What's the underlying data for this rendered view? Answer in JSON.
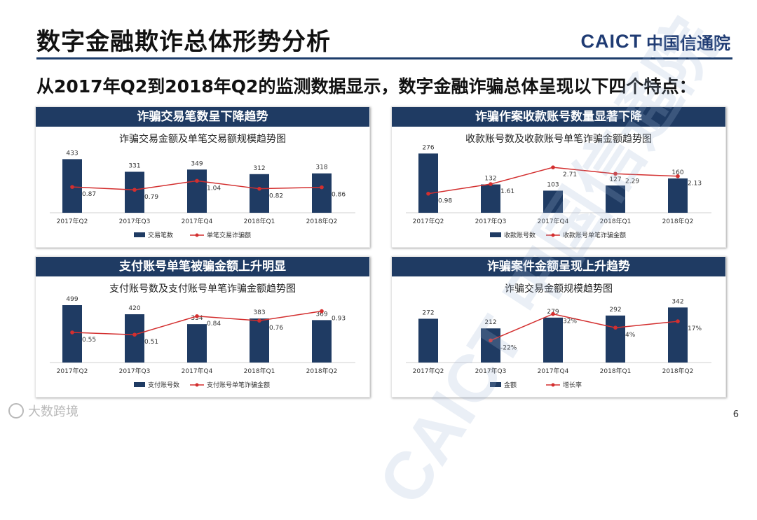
{
  "slide": {
    "title": "数字金融欺诈总体形势分析",
    "subtitle": "从2017年Q2到2018年Q2的监测数据显示，数字金融诈骗总体呈现以下四个特点：",
    "logo_en": "CAICT",
    "logo_cn": "中国信通院",
    "page_number": "6",
    "watermark_bottom": "大数跨境",
    "watermark_diagonal": "CAICT 中国信通院"
  },
  "colors": {
    "bar": "#1f3b63",
    "line": "#d32f2f",
    "header": "#1f3b63"
  },
  "panels": [
    {
      "header": "诈骗交易笔数呈下降趋势",
      "chart_title": "诈骗交易金额及单笔交易额规模趋势图"
    },
    {
      "header": "诈骗作案收款账号数量显著下降",
      "chart_title": "收款账号数及收款账号单笔诈骗金额趋势图"
    },
    {
      "header": "支付账号单笔被骗金额上升明显",
      "chart_title": "支付账号数及支付账号单笔诈骗金额趋势图"
    },
    {
      "header": "诈骗案件金额呈现上升趋势",
      "chart_title": "诈骗交易金额规模趋势图"
    }
  ],
  "chart_data": [
    {
      "type": "bar",
      "categories": [
        "2017年Q2",
        "2017年Q3",
        "2017年Q4",
        "2018年Q1",
        "2018年Q2"
      ],
      "series": [
        {
          "name": "交易笔数",
          "kind": "bar",
          "values": [
            433,
            331,
            349,
            312,
            318
          ],
          "labels": [
            "433",
            "331",
            "349",
            "312",
            "318"
          ]
        },
        {
          "name": "单笔交易诈骗额",
          "kind": "line",
          "values": [
            0.87,
            0.79,
            1.04,
            0.82,
            0.86
          ],
          "labels": [
            "0.87",
            "0.79",
            "1.04",
            "0.82",
            "0.86"
          ]
        }
      ],
      "legend": "bottom"
    },
    {
      "type": "bar",
      "categories": [
        "2017年Q2",
        "2017年Q3",
        "2017年Q4",
        "2018年Q1",
        "2018年Q2"
      ],
      "series": [
        {
          "name": "收款账号数",
          "kind": "bar",
          "values": [
            276,
            132,
            103,
            127,
            160
          ],
          "labels": [
            "276",
            "132",
            "103",
            "127",
            "160"
          ]
        },
        {
          "name": "收款账号单笔诈骗金额",
          "kind": "line",
          "values": [
            0.98,
            1.61,
            2.71,
            2.29,
            2.13
          ],
          "labels": [
            "0.98",
            "1.61",
            "2.71",
            "2.29",
            "2.13"
          ]
        }
      ],
      "legend": "bottom"
    },
    {
      "type": "bar",
      "categories": [
        "2017年Q2",
        "2017年Q3",
        "2017年Q4",
        "2018年Q1",
        "2018年Q2"
      ],
      "series": [
        {
          "name": "支付账号数",
          "kind": "bar",
          "values": [
            499,
            420,
            334,
            383,
            369
          ],
          "labels": [
            "499",
            "420",
            "334",
            "383",
            "369"
          ]
        },
        {
          "name": "支付账号单笔诈骗金额",
          "kind": "line",
          "values": [
            0.55,
            0.51,
            0.84,
            0.76,
            0.93
          ],
          "labels": [
            "0.55",
            "0.51",
            "0.84",
            "0.76",
            "0.93"
          ]
        }
      ],
      "legend": "bottom"
    },
    {
      "type": "bar",
      "categories": [
        "2017年Q2",
        "2017年Q3",
        "2017年Q4",
        "2018年Q1",
        "2018年Q2"
      ],
      "series": [
        {
          "name": "金额",
          "kind": "bar",
          "values": [
            272,
            212,
            279,
            292,
            342
          ],
          "labels": [
            "272",
            "212",
            "279",
            "292",
            "342"
          ]
        },
        {
          "name": "增长率",
          "kind": "line",
          "values": [
            null,
            -22,
            32,
            4,
            17
          ],
          "labels": [
            "",
            "-22%",
            "32%",
            "4%",
            "17%"
          ]
        }
      ],
      "legend": "bottom"
    }
  ]
}
